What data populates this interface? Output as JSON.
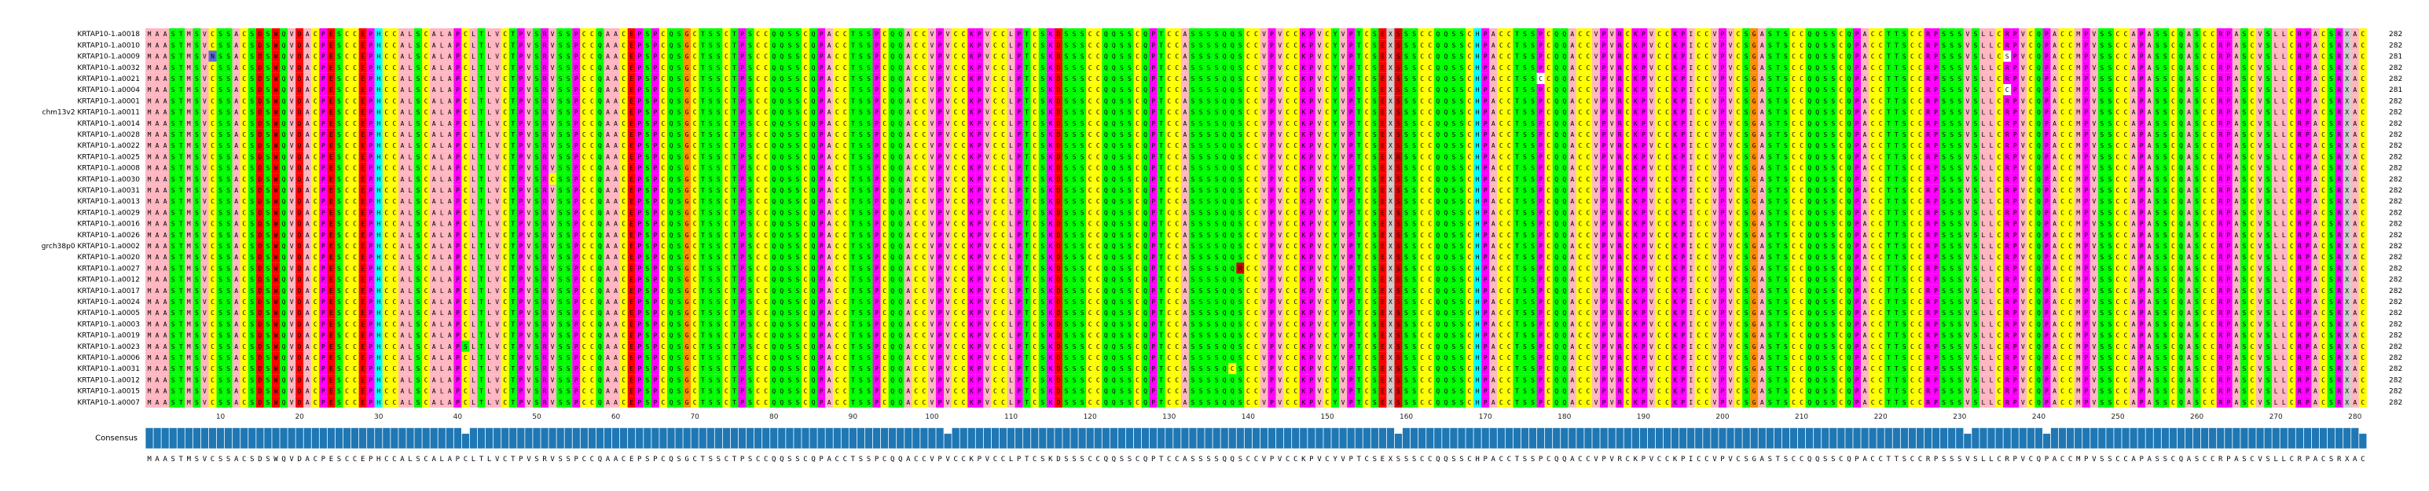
{
  "sequence_length": 283,
  "row_names": [
    "KRTAP10-1.a0018",
    "KRTAP10-1.a0010",
    "KRTAP10-1.a0009",
    "KRTAP10-1.a0032",
    "KRTAP10-1.a0021",
    "KRTAP10-1.a0004",
    "KRTAP10-1.a0001",
    "chm13v2 KRTAP10-1.a0011",
    "KRTAP10-1.a0014",
    "KRTAP10-1.a0028",
    "KRTAP10-1.a0022",
    "KRTAP10-1.a0025",
    "KRTAP10-1.a0008",
    "KRTAP10-1.a0030",
    "KRTAP10-1.a0031",
    "KRTAP10-1.a0013",
    "KRTAP10-1.a0029",
    "KRTAP10-1.a0016",
    "KRTAP10-1.a0026",
    "grch38p0 KRTAP10-1.a0002",
    "KRTAP10-1.a0020",
    "KRTAP10-1.a0027",
    "KRTAP10-1.a0012",
    "KRTAP10-1.a0017",
    "KRTAP10-1.a0024",
    "KRTAP10-1.a0005",
    "KRTAP10-1.a0003",
    "KRTAP10-1.a0019",
    "KRTAP10-1.a0023",
    "KRTAP10-1.a0006",
    "KRTAP10-1.a0031",
    "KRTAP10-1.a0012",
    "KRTAP10-1.a0015",
    "KRTAP10-1.a0007"
  ],
  "row_lengths": [
    282,
    282,
    281,
    282,
    282,
    281,
    282,
    282,
    282,
    282,
    282,
    282,
    282,
    282,
    282,
    282,
    282,
    282,
    282,
    282,
    282,
    282,
    282,
    282,
    282,
    282,
    282,
    282,
    282,
    282,
    282,
    282,
    282,
    282
  ],
  "consensus_label": "Consensus",
  "consensus_sequence": "MAASTMSVCSSACSDSWQVDACPESCCEPHCCALSCALAPCLTLVCTPVSRVSSPCCQAACEPSPCQSGCTSSCTPSCCQQSSCQPACCTSSPCQQACCVPVCCKPVCCLPTCSKDSSSCCQQSSCQPTCCASSSSQQSCCVPVCCKPVCYVPTCSEXSSSCCQQSSCHPACCTSSPCQQACCVPVRCKPVCCKPICCVPVCSGASTSCCQQSSCQPACCTTSCCRPSSSVSLLCRPVCQPACCMPVSSCCAPASSCQASCCRPASCVSLLCRPACSRXAC",
  "ruler_ticks": [
    10,
    20,
    30,
    40,
    50,
    60,
    70,
    80,
    90,
    100,
    110,
    120,
    130,
    140,
    150,
    160,
    170,
    180,
    190,
    200,
    210,
    220,
    230,
    240,
    250,
    260,
    270,
    280
  ],
  "gap_columns": [
    40,
    101,
    158,
    230,
    240,
    280
  ],
  "residue_colors": {
    "A": "#ffb6c1",
    "C": "#ffff00",
    "S": "#00ff00",
    "T": "#00ff00",
    "V": "#ffb6c1",
    "L": "#ffb6c1",
    "I": "#ffb6c1",
    "M": "#ffb6c1",
    "P": "#ff00ff",
    "G": "#ff8c00",
    "Q": "#00ff00",
    "E": "#ff0000",
    "D": "#ff0000",
    "K": "#ff00ff",
    "R": "#ff00ff",
    "H": "#00ffff",
    "Y": "#00ff00",
    "W": "#ff0000",
    "F": "#ffb6c1",
    "N": "#00ff00",
    "X": "#cccccc"
  },
  "variants": [
    {
      "row": 2,
      "col": 8,
      "aa": "N",
      "color": "#5b6bd6"
    },
    {
      "row": 2,
      "col": 235,
      "aa": "S",
      "color": "#ffffff"
    },
    {
      "row": 4,
      "col": 176,
      "aa": "C",
      "color": "#ffffff"
    },
    {
      "row": 5,
      "col": 235,
      "aa": "C",
      "color": "#ffffff"
    },
    {
      "row": 11,
      "col": 158,
      "aa": "R",
      "color": "#cc0000"
    },
    {
      "row": 13,
      "col": 51,
      "aa": "C",
      "color": "#ffff00"
    },
    {
      "row": 21,
      "col": 138,
      "aa": "R",
      "color": "#cc0000"
    },
    {
      "row": 30,
      "col": 137,
      "aa": "C",
      "color": "#ffff00"
    },
    {
      "row": 28,
      "col": 40,
      "aa": "S",
      "color": "#00ff00"
    }
  ],
  "red_column": 158,
  "consensus_bar_color": "#1f77b4"
}
